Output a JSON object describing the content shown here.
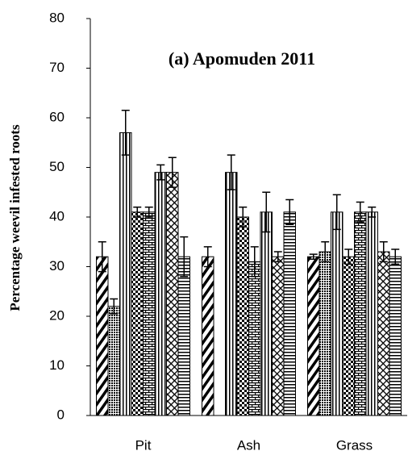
{
  "chart_data": {
    "type": "bar",
    "title": "(a) Apomuden 2011",
    "y_label": "Percentage weevil infested roots",
    "categories": [
      "Pit",
      "Ash",
      "Grass"
    ],
    "ylim": [
      0,
      80
    ],
    "yticks": [
      0,
      10,
      20,
      30,
      40,
      50,
      60,
      70,
      80
    ],
    "series": [
      {
        "color": "#000000",
        "pattern": "diagonal",
        "values": [
          32,
          32,
          32
        ],
        "errors": [
          3,
          2,
          0.5
        ]
      },
      {
        "color": "#000000",
        "pattern": "dots",
        "values": [
          22,
          null,
          33
        ],
        "errors": [
          1.5,
          null,
          2
        ]
      },
      {
        "color": "#000000",
        "pattern": "vertical",
        "values": [
          57,
          49,
          41
        ],
        "errors": [
          4.5,
          3.5,
          3.5
        ]
      },
      {
        "color": "#000000",
        "pattern": "checker",
        "values": [
          41,
          40,
          32
        ],
        "errors": [
          1,
          2,
          1.5
        ]
      },
      {
        "color": "#000000",
        "pattern": "brick",
        "values": [
          41,
          31,
          41
        ],
        "errors": [
          1,
          3,
          2
        ]
      },
      {
        "color": "#000000",
        "pattern": "vertical",
        "values": [
          49,
          41,
          41
        ],
        "errors": [
          1.5,
          4,
          1
        ]
      },
      {
        "color": "#000000",
        "pattern": "diamond",
        "values": [
          49,
          32,
          33
        ],
        "errors": [
          3,
          1,
          2
        ]
      },
      {
        "color": "#000000",
        "pattern": "horizontal",
        "values": [
          32,
          41,
          32
        ],
        "errors": [
          4,
          2.5,
          1.5
        ]
      }
    ]
  }
}
